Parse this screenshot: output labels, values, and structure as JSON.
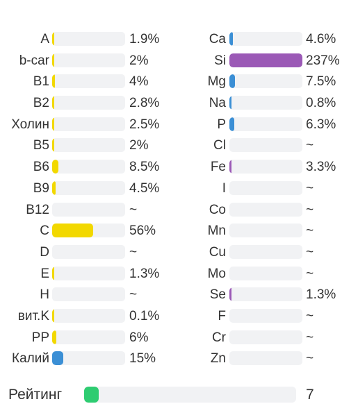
{
  "colors": {
    "vitamin": "#f2d800",
    "mineral_blue": "#3b8fd5",
    "mineral_purple": "#9b59b6",
    "rating": "#2ecc71",
    "track": "#f1f2f4"
  },
  "chart_data": {
    "type": "bar",
    "orientation": "horizontal",
    "unit": "%",
    "vitamins": [
      {
        "label": "A",
        "value_text": "1.9%",
        "value": 1.9,
        "color": "#f2d800"
      },
      {
        "label": "b-car",
        "value_text": "2%",
        "value": 2,
        "color": "#f2d800"
      },
      {
        "label": "B1",
        "value_text": "4%",
        "value": 4,
        "color": "#f2d800"
      },
      {
        "label": "B2",
        "value_text": "2.8%",
        "value": 2.8,
        "color": "#f2d800"
      },
      {
        "label": "Холин",
        "value_text": "2.5%",
        "value": 2.5,
        "color": "#f2d800"
      },
      {
        "label": "B5",
        "value_text": "2%",
        "value": 2,
        "color": "#f2d800"
      },
      {
        "label": "B6",
        "value_text": "8.5%",
        "value": 8.5,
        "color": "#f2d800"
      },
      {
        "label": "B9",
        "value_text": "4.5%",
        "value": 4.5,
        "color": "#f2d800"
      },
      {
        "label": "B12",
        "value_text": "~",
        "value": 0,
        "color": "#f2d800"
      },
      {
        "label": "C",
        "value_text": "56%",
        "value": 56,
        "color": "#f2d800"
      },
      {
        "label": "D",
        "value_text": "~",
        "value": 0,
        "color": "#f2d800"
      },
      {
        "label": "E",
        "value_text": "1.3%",
        "value": 1.3,
        "color": "#f2d800"
      },
      {
        "label": "H",
        "value_text": "~",
        "value": 0,
        "color": "#f2d800"
      },
      {
        "label": "вит.K",
        "value_text": "0.1%",
        "value": 0.1,
        "color": "#f2d800"
      },
      {
        "label": "PP",
        "value_text": "6%",
        "value": 6,
        "color": "#f2d800"
      },
      {
        "label": "Калий",
        "value_text": "15%",
        "value": 15,
        "color": "#3b8fd5"
      }
    ],
    "minerals": [
      {
        "label": "Ca",
        "value_text": "4.6%",
        "value": 4.6,
        "color": "#3b8fd5"
      },
      {
        "label": "Si",
        "value_text": "237%",
        "value": 237,
        "color": "#9b59b6"
      },
      {
        "label": "Mg",
        "value_text": "7.5%",
        "value": 7.5,
        "color": "#3b8fd5"
      },
      {
        "label": "Na",
        "value_text": "0.8%",
        "value": 0.8,
        "color": "#3b8fd5"
      },
      {
        "label": "P",
        "value_text": "6.3%",
        "value": 6.3,
        "color": "#3b8fd5"
      },
      {
        "label": "Cl",
        "value_text": "~",
        "value": 0,
        "color": "#3b8fd5"
      },
      {
        "label": "Fe",
        "value_text": "3.3%",
        "value": 3.3,
        "color": "#9b59b6"
      },
      {
        "label": "I",
        "value_text": "~",
        "value": 0,
        "color": "#9b59b6"
      },
      {
        "label": "Co",
        "value_text": "~",
        "value": 0,
        "color": "#9b59b6"
      },
      {
        "label": "Mn",
        "value_text": "~",
        "value": 0,
        "color": "#9b59b6"
      },
      {
        "label": "Cu",
        "value_text": "~",
        "value": 0,
        "color": "#9b59b6"
      },
      {
        "label": "Mo",
        "value_text": "~",
        "value": 0,
        "color": "#9b59b6"
      },
      {
        "label": "Se",
        "value_text": "1.3%",
        "value": 1.3,
        "color": "#9b59b6"
      },
      {
        "label": "F",
        "value_text": "~",
        "value": 0,
        "color": "#9b59b6"
      },
      {
        "label": "Cr",
        "value_text": "~",
        "value": 0,
        "color": "#9b59b6"
      },
      {
        "label": "Zn",
        "value_text": "~",
        "value": 0,
        "color": "#9b59b6"
      }
    ],
    "bar_max_value": 100,
    "rating": {
      "label": "Рейтинг",
      "value_text": "7",
      "value": 7,
      "max_value": 100,
      "color": "#2ecc71"
    }
  }
}
